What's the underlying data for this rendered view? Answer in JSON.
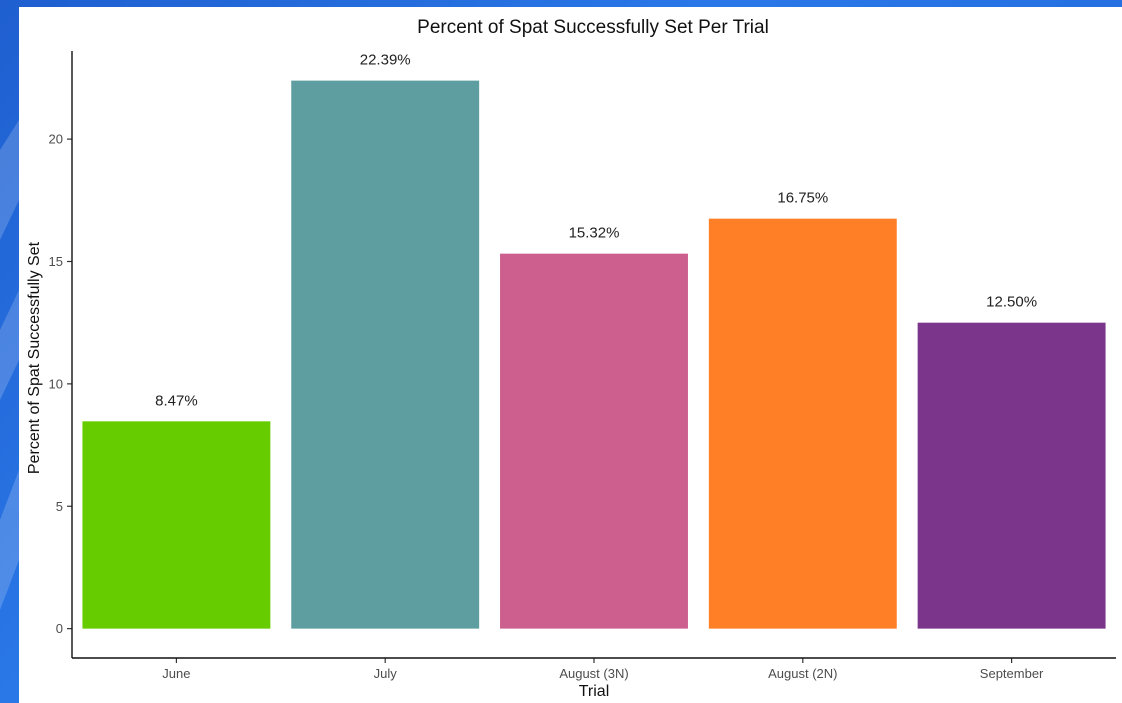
{
  "chart_data": {
    "type": "bar",
    "title": "Percent of Spat Successfully Set Per Trial",
    "xlabel": "Trial",
    "ylabel": "Percent of Spat Successfully Set",
    "categories": [
      "June",
      "July",
      "August (3N)",
      "August (2N)",
      "September"
    ],
    "values": [
      8.47,
      22.39,
      15.32,
      16.75,
      12.5
    ],
    "data_labels": [
      "8.47%",
      "22.39%",
      "15.32%",
      "16.75%",
      "12.50%"
    ],
    "colors": [
      "#66cc00",
      "#5f9ea0",
      "#cd5f8e",
      "#ff7f27",
      "#7b368c"
    ],
    "y_ticks": [
      0,
      5,
      10,
      15,
      20
    ],
    "ylim": [
      -1.2,
      23.6
    ],
    "grid": false,
    "legend": "none"
  }
}
